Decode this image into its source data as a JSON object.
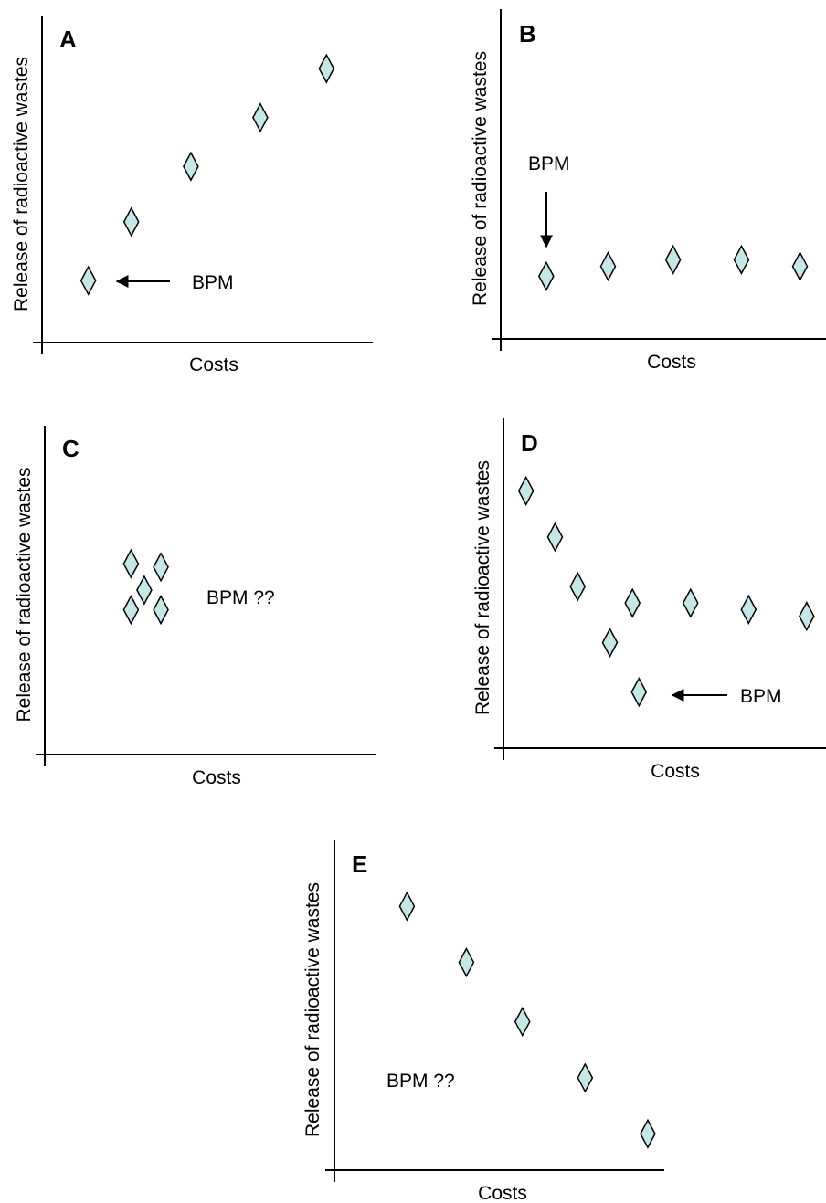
{
  "figure": {
    "marker_fill": "#c7e6e6",
    "marker_stroke": "#000000",
    "axis_color": "#000000",
    "marker_shape": "diamond"
  },
  "chart_data": [
    {
      "type": "scatter",
      "panel_label": "A",
      "xlabel": "Costs",
      "ylabel": "Release of radioactive wastes",
      "xlim": [
        0,
        10
      ],
      "ylim": [
        0,
        10
      ],
      "points": [
        {
          "x": 1.4,
          "y": 1.9
        },
        {
          "x": 2.7,
          "y": 3.7
        },
        {
          "x": 4.5,
          "y": 5.4
        },
        {
          "x": 6.6,
          "y": 6.9
        },
        {
          "x": 8.6,
          "y": 8.4
        }
      ],
      "annotation": {
        "text": "BPM",
        "arrow": "left",
        "target_index": 0
      }
    },
    {
      "type": "scatter",
      "panel_label": "B",
      "xlabel": "Costs",
      "ylabel": "Release of radioactive wastes",
      "xlim": [
        0,
        10
      ],
      "ylim": [
        0,
        10
      ],
      "points": [
        {
          "x": 1.4,
          "y": 1.9
        },
        {
          "x": 3.3,
          "y": 2.2
        },
        {
          "x": 5.3,
          "y": 2.4
        },
        {
          "x": 7.4,
          "y": 2.4
        },
        {
          "x": 9.2,
          "y": 2.2
        }
      ],
      "annotation": {
        "text": "BPM",
        "arrow": "down",
        "target_index": 0
      }
    },
    {
      "type": "scatter",
      "panel_label": "C",
      "xlabel": "Costs",
      "ylabel": "Release of radioactive wastes",
      "xlim": [
        0,
        10
      ],
      "ylim": [
        0,
        10
      ],
      "points": [
        {
          "x": 2.6,
          "y": 5.8
        },
        {
          "x": 3.5,
          "y": 5.7
        },
        {
          "x": 3.0,
          "y": 5.0
        },
        {
          "x": 2.6,
          "y": 4.4
        },
        {
          "x": 3.5,
          "y": 4.4
        }
      ],
      "annotation": {
        "text": "BPM ??",
        "arrow": "none"
      }
    },
    {
      "type": "scatter",
      "panel_label": "D",
      "xlabel": "Costs",
      "ylabel": "Release of radioactive wastes",
      "xlim": [
        0,
        10
      ],
      "ylim": [
        0,
        10
      ],
      "points": [
        {
          "x": 0.7,
          "y": 7.8
        },
        {
          "x": 1.6,
          "y": 6.4
        },
        {
          "x": 2.3,
          "y": 4.9
        },
        {
          "x": 3.3,
          "y": 3.2
        },
        {
          "x": 4.0,
          "y": 4.4
        },
        {
          "x": 5.8,
          "y": 4.4
        },
        {
          "x": 7.6,
          "y": 4.2
        },
        {
          "x": 9.4,
          "y": 4.0
        },
        {
          "x": 4.2,
          "y": 1.7
        }
      ],
      "annotation": {
        "text": "BPM",
        "arrow": "left",
        "target_index": 8
      }
    },
    {
      "type": "scatter",
      "panel_label": "E",
      "xlabel": "Costs",
      "ylabel": "Release of radioactive wastes",
      "xlim": [
        0,
        10
      ],
      "ylim": [
        0,
        10
      ],
      "points": [
        {
          "x": 2.2,
          "y": 8.0
        },
        {
          "x": 4.0,
          "y": 6.3
        },
        {
          "x": 5.7,
          "y": 4.5
        },
        {
          "x": 7.6,
          "y": 2.8
        },
        {
          "x": 9.5,
          "y": 1.1
        }
      ],
      "annotation": {
        "text": "BPM ??",
        "arrow": "none"
      }
    }
  ]
}
